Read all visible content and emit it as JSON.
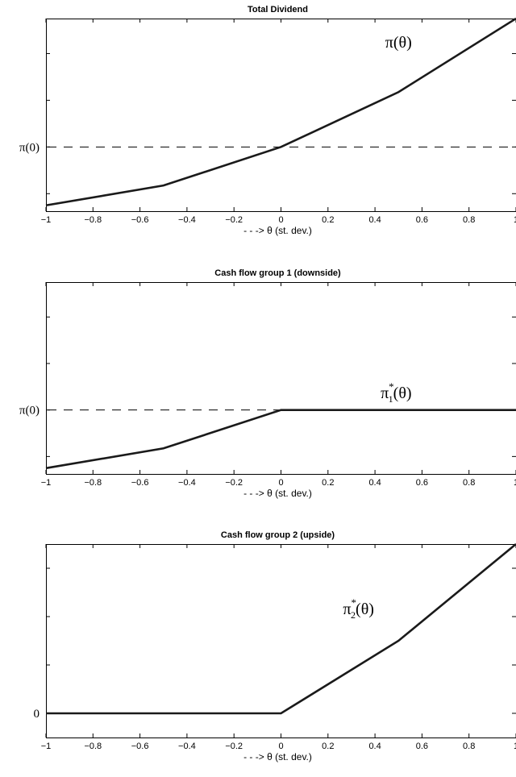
{
  "chart_data": [
    {
      "type": "line",
      "title": "Total Dividend",
      "xlabel": "- - -> θ (st. dev.)",
      "ylabel": "",
      "xlim": [
        -1,
        1
      ],
      "ylim": [
        -0.55,
        1.1
      ],
      "x_ticks": [
        -1,
        -0.8,
        -0.6,
        -0.4,
        -0.2,
        0,
        0.2,
        0.4,
        0.6,
        0.8,
        1
      ],
      "x_tick_labels": [
        "−1",
        "−0.8",
        "−0.6",
        "−0.4",
        "−0.2",
        "0",
        "0.2",
        "0.4",
        "0.6",
        "0.8",
        "1"
      ],
      "y_ticks": [
        -0.4,
        0,
        0.4,
        0.8
      ],
      "y_labels": [
        {
          "value": 0,
          "label": "π(0)"
        }
      ],
      "reference_line": {
        "y": 0,
        "style": "dashed"
      },
      "annotation": {
        "base": "π(θ)",
        "sup": "",
        "sub": "",
        "x": 0.5,
        "y": 0.85
      },
      "series": [
        {
          "x": [
            -1,
            -0.5,
            0,
            0.5,
            1
          ],
          "y": [
            -0.5,
            -0.33,
            0,
            0.47,
            1.1
          ]
        }
      ],
      "grid": false
    },
    {
      "type": "line",
      "title": "Cash flow group 1 (downside)",
      "xlabel": "- - -> θ (st. dev.)",
      "ylabel": "",
      "xlim": [
        -1,
        1
      ],
      "ylim": [
        -0.55,
        1.1
      ],
      "x_ticks": [
        -1,
        -0.8,
        -0.6,
        -0.4,
        -0.2,
        0,
        0.2,
        0.4,
        0.6,
        0.8,
        1
      ],
      "x_tick_labels": [
        "−1",
        "−0.8",
        "−0.6",
        "−0.4",
        "−0.2",
        "0",
        "0.2",
        "0.4",
        "0.6",
        "0.8",
        "1"
      ],
      "y_ticks": [
        -0.4,
        0,
        0.4,
        0.8
      ],
      "y_labels": [
        {
          "value": 0,
          "label": "π(0)"
        }
      ],
      "reference_line": {
        "y": 0,
        "style": "dashed"
      },
      "annotation": {
        "base": "π",
        "sup": "*",
        "sub": "1",
        "tail": "(θ)",
        "x": 0.49,
        "y": 0.1
      },
      "series": [
        {
          "x": [
            -1,
            -0.5,
            0,
            1
          ],
          "y": [
            -0.5,
            -0.33,
            0,
            0
          ]
        }
      ],
      "grid": false
    },
    {
      "type": "line",
      "title": "Cash flow group 2 (upside)",
      "xlabel": "- - -> θ (st. dev.)",
      "ylabel": "",
      "xlim": [
        -1,
        1
      ],
      "ylim": [
        -0.2,
        1.4
      ],
      "x_ticks": [
        -1,
        -0.8,
        -0.6,
        -0.4,
        -0.2,
        0,
        0.2,
        0.4,
        0.6,
        0.8,
        1
      ],
      "x_tick_labels": [
        "−1",
        "−0.8",
        "−0.6",
        "−0.4",
        "−0.2",
        "0",
        "0.2",
        "0.4",
        "0.6",
        "0.8",
        "1"
      ],
      "y_ticks": [
        0,
        0.4,
        0.8,
        1.2
      ],
      "y_labels": [
        {
          "value": 0,
          "label": "0"
        }
      ],
      "reference_line": null,
      "annotation": {
        "base": "π",
        "sup": "*",
        "sub": "2",
        "tail": "(θ)",
        "x": 0.33,
        "y": 0.82
      },
      "series": [
        {
          "x": [
            -1,
            -0.5,
            0,
            0.5,
            1
          ],
          "y": [
            0,
            0,
            0,
            0.6,
            1.4
          ]
        }
      ],
      "grid": false
    }
  ]
}
